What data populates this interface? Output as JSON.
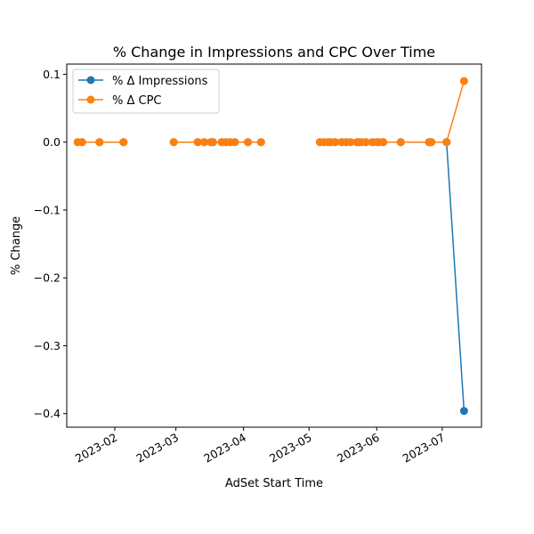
{
  "chart_data": {
    "type": "line",
    "title": "% Change in Impressions and CPC Over Time",
    "xlabel": "AdSet Start Time",
    "ylabel": "% Change",
    "xlim": [
      "2023-01-10",
      "2023-07-19"
    ],
    "ylim": [
      -0.42,
      0.115
    ],
    "x_ticks": [
      "2023-02-01",
      "2023-03-01",
      "2023-04-01",
      "2023-05-01",
      "2023-06-01",
      "2023-07-01"
    ],
    "x_tick_labels": [
      "2023-02",
      "2023-03",
      "2023-04",
      "2023-05",
      "2023-06",
      "2023-07"
    ],
    "y_ticks": [
      0.1,
      0.0,
      -0.1,
      -0.2,
      -0.3,
      -0.4
    ],
    "y_tick_labels": [
      "0.1",
      "0.0",
      "−0.1",
      "−0.2",
      "−0.3",
      "−0.4"
    ],
    "grid": false,
    "legend_position": "top-left",
    "segment_groups": [
      [
        0,
        3
      ],
      [
        4,
        14
      ],
      [
        15,
        37
      ]
    ],
    "x": [
      "2023-01-15",
      "2023-01-17",
      "2023-01-25",
      "2023-02-05",
      "2023-02-28",
      "2023-03-11",
      "2023-03-14",
      "2023-03-17",
      "2023-03-18",
      "2023-03-22",
      "2023-03-24",
      "2023-03-26",
      "2023-03-28",
      "2023-04-03",
      "2023-04-09",
      "2023-05-06",
      "2023-05-08",
      "2023-05-10",
      "2023-05-11",
      "2023-05-13",
      "2023-05-16",
      "2023-05-18",
      "2023-05-20",
      "2023-05-23",
      "2023-05-24",
      "2023-05-25",
      "2023-05-27",
      "2023-05-30",
      "2023-06-01",
      "2023-06-02",
      "2023-06-04",
      "2023-06-12",
      "2023-06-25",
      "2023-06-26",
      "2023-06-26",
      "2023-07-03",
      "2023-07-03",
      "2023-07-11"
    ],
    "series": [
      {
        "name": "% Δ Impressions",
        "color": "#1f77b4",
        "values": [
          0.0,
          0.0,
          0.0,
          0.0,
          0.0,
          0.0,
          0.0,
          0.0,
          0.0,
          0.0,
          0.0,
          0.0,
          0.0,
          0.0,
          0.0,
          0.0,
          0.0,
          0.0,
          0.0,
          0.0,
          0.0,
          0.0,
          0.0,
          0.0,
          0.0,
          0.0,
          0.0,
          0.0,
          0.0,
          0.0,
          0.0,
          0.0,
          0.0,
          0.0,
          0.0,
          0.0,
          0.0,
          -0.396
        ]
      },
      {
        "name": "% Δ CPC",
        "color": "#ff7f0e",
        "values": [
          0.0,
          0.0,
          0.0,
          0.0,
          0.0,
          0.0,
          0.0,
          0.0,
          0.0,
          0.0,
          0.0,
          0.0,
          0.0,
          0.0,
          0.0,
          0.0,
          0.0,
          0.0,
          0.0,
          0.0,
          0.0,
          0.0,
          0.0,
          0.0,
          0.0,
          0.0,
          0.0,
          0.0,
          0.0,
          0.0,
          0.0,
          0.0,
          0.0,
          0.0,
          0.0,
          0.0,
          0.0,
          0.09
        ]
      }
    ]
  }
}
